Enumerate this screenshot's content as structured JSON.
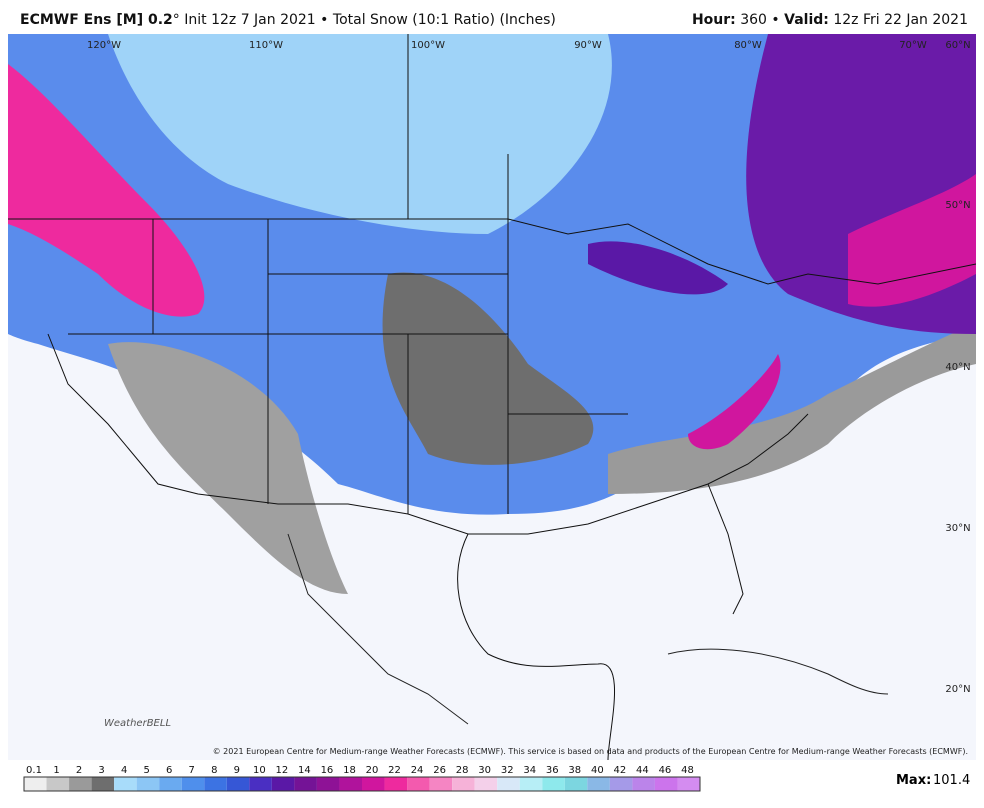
{
  "header": {
    "model": "ECMWF Ens [M] 0.2",
    "degree": "°",
    "init": "Init 12z 7 Jan 2021",
    "bullet": "•",
    "product": "Total Snow (10:1 Ratio) (Inches)",
    "hour_label": "Hour:",
    "hour": "360",
    "valid_label": "Valid:",
    "valid": "12z Fri 22 Jan 2021"
  },
  "map": {
    "lon_labels": [
      "120°W",
      "110°W",
      "100°W",
      "90°W",
      "80°W",
      "70°W"
    ],
    "lat_labels": [
      "60°N",
      "50°N",
      "40°N",
      "30°N",
      "20°N"
    ],
    "copyright": "© 2021 European Centre for Medium-range Weather Forecasts (ECMWF). This service is based on data and products of the European Centre for Medium-range Weather Forecasts (ECMWF).",
    "logo": "WeatherBELL"
  },
  "legend": {
    "labels": [
      0.1,
      1,
      2,
      3,
      4,
      5,
      6,
      7,
      8,
      9,
      10,
      12,
      14,
      16,
      18,
      20,
      22,
      24,
      26,
      28,
      30,
      32,
      34,
      36,
      38,
      40,
      42,
      44,
      46,
      48
    ],
    "colors": [
      "#eeeeee",
      "#c8c8c8",
      "#9a9a9a",
      "#6e6e6e",
      "#a8dcfa",
      "#8cc6f5",
      "#6aaaf0",
      "#4f8fec",
      "#3c73e3",
      "#3657d6",
      "#4a2fc2",
      "#5a18a6",
      "#741396",
      "#8e1296",
      "#b0139c",
      "#d0169e",
      "#ee2a9e",
      "#f35aae",
      "#f585c3",
      "#f6b2d8",
      "#f4d0ea",
      "#d8e8f8",
      "#b7eef6",
      "#8ee9ec",
      "#7cd6e0",
      "#8ab8e6",
      "#a59ae8",
      "#bb84ea",
      "#cc74ec",
      "#d48cf0"
    ],
    "max_label": "Max:",
    "max": 101.4
  }
}
